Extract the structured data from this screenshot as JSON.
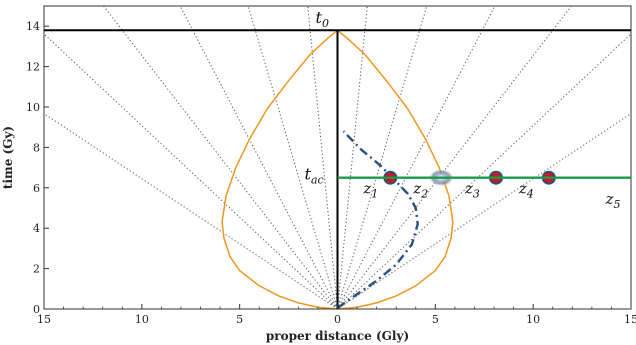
{
  "chart_data": {
    "type": "line",
    "xlabel": "proper distance (Gly)",
    "ylabel": "time (Gy)",
    "xlim": [
      -15,
      15
    ],
    "ylim": [
      0,
      15
    ],
    "x_tick_labels": [
      "15",
      "10",
      "5",
      "0",
      "5",
      "10",
      "15"
    ],
    "y_tick_labels": [
      "0",
      "2",
      "4",
      "6",
      "8",
      "10",
      "12",
      "14"
    ],
    "grid": false,
    "t0_line": {
      "label": "t",
      "sub": "0",
      "y": 13.8,
      "color": "#000000"
    },
    "tac_line": {
      "label": "t",
      "sub": "ac",
      "y": 6.5,
      "x_from": 0,
      "x_to": 15,
      "color": "#1a9a4a"
    },
    "light_cone": {
      "color": "#f0961e",
      "right_branch": [
        [
          0,
          0
        ],
        [
          1,
          0.09
        ],
        [
          2,
          0.3
        ],
        [
          3,
          0.65
        ],
        [
          4,
          1.15
        ],
        [
          5,
          1.9
        ],
        [
          5.5,
          2.6
        ],
        [
          5.8,
          3.5
        ],
        [
          5.9,
          4.3
        ],
        [
          5.7,
          5.6
        ],
        [
          5.2,
          7.0
        ],
        [
          4.5,
          8.4
        ],
        [
          3.6,
          9.9
        ],
        [
          2.5,
          11.3
        ],
        [
          1.4,
          12.6
        ],
        [
          0.5,
          13.4
        ],
        [
          0,
          13.8
        ]
      ]
    },
    "worldline": {
      "color": "#2a4f86",
      "points": [
        [
          0,
          0.05
        ],
        [
          0.8,
          0.6
        ],
        [
          2.0,
          1.4
        ],
        [
          3.0,
          2.2
        ],
        [
          3.8,
          3.2
        ],
        [
          4.1,
          4.2
        ],
        [
          4.0,
          5.0
        ],
        [
          3.6,
          5.7
        ],
        [
          3.0,
          6.3
        ],
        [
          2.2,
          7.1
        ],
        [
          1.2,
          7.9
        ],
        [
          0.3,
          8.8
        ]
      ]
    },
    "comoving_lines": {
      "slopes_x_at_t0": [
        1.4,
        4.2,
        7.4,
        11,
        15.2,
        21.4
      ],
      "color": "#555555"
    },
    "markers": [
      {
        "x": 2.7,
        "y": 6.5,
        "label": "z",
        "sub": "1",
        "color": "#d41414"
      },
      {
        "x": 8.1,
        "y": 6.5,
        "label": "z",
        "sub": "3",
        "color": "#d41414"
      },
      {
        "x": 10.8,
        "y": 6.5,
        "label": "z",
        "sub": "4",
        "color": "#d41414"
      }
    ],
    "galaxy_glow": {
      "x": 5.3,
      "y": 6.5,
      "label": "z",
      "sub": "2"
    },
    "extra_labels": [
      {
        "x": 13.7,
        "y": 6.0,
        "label": "z",
        "sub": "5"
      }
    ]
  }
}
